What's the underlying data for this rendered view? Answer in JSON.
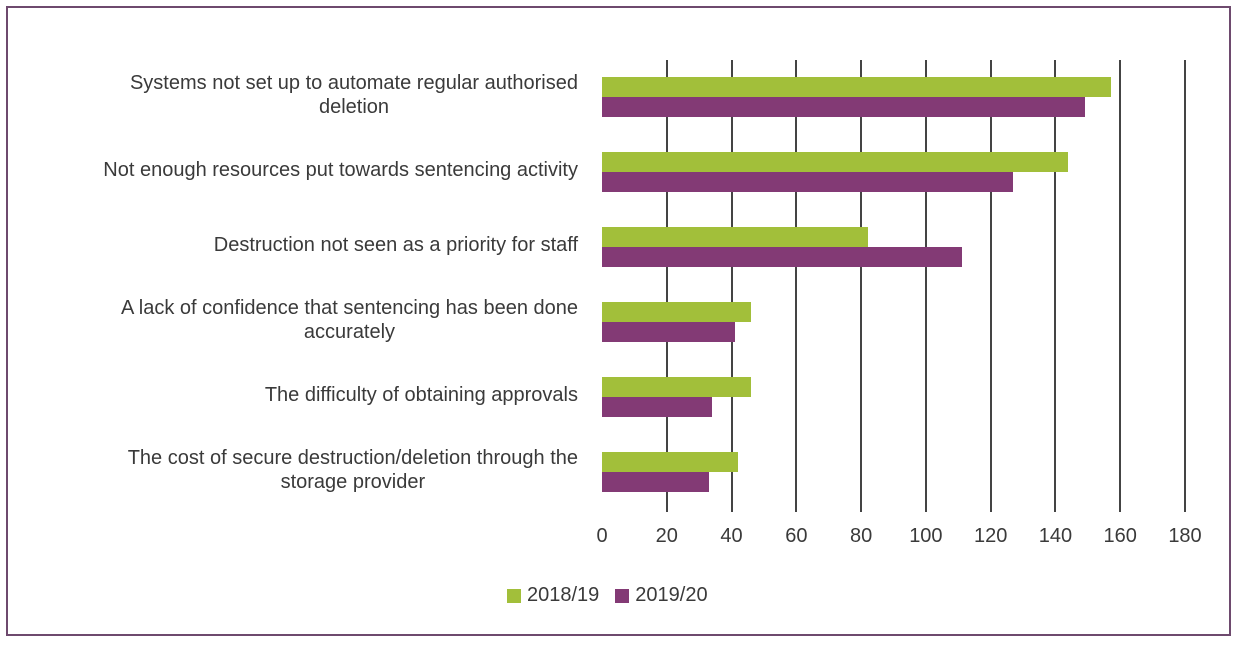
{
  "chart_data": {
    "type": "bar",
    "orientation": "horizontal",
    "title": "",
    "xlabel": "",
    "ylabel": "",
    "xlim": [
      0,
      180
    ],
    "x_ticks": [
      0,
      20,
      40,
      60,
      80,
      100,
      120,
      140,
      160,
      180
    ],
    "grid": true,
    "legend_position": "bottom",
    "categories": [
      "Systems not set up to automate regular authorised deletion",
      "Not enough resources put towards sentencing activity",
      "Destruction not seen as a priority for staff",
      "A lack of confidence that sentencing has been done accurately",
      "The difficulty of obtaining approvals",
      "The cost of secure destruction/deletion through the storage provider"
    ],
    "series": [
      {
        "name": "2018/19",
        "color": "#a2bf3a",
        "values": [
          157,
          144,
          82,
          46,
          46,
          42
        ]
      },
      {
        "name": "2019/20",
        "color": "#833a75",
        "values": [
          149,
          127,
          111,
          41,
          34,
          33
        ]
      }
    ]
  },
  "labels": [
    [
      "Systems not set up to automate regular authorised",
      "deletion"
    ],
    [
      "Not enough resources put towards sentencing activity"
    ],
    [
      "Destruction not seen as a priority for staff"
    ],
    [
      "A lack of confidence that sentencing has been done",
      "accurately"
    ],
    [
      "The difficulty of obtaining approvals"
    ],
    [
      "The cost of secure destruction/deletion through the",
      "storage provider"
    ]
  ],
  "legend": [
    {
      "label": "2018/19",
      "color": "#a2bf3a"
    },
    {
      "label": "2019/20",
      "color": "#833a75"
    }
  ],
  "colors": {
    "border": "#6e4a6e",
    "grid": "#444444",
    "text": "#3a3a3a"
  }
}
